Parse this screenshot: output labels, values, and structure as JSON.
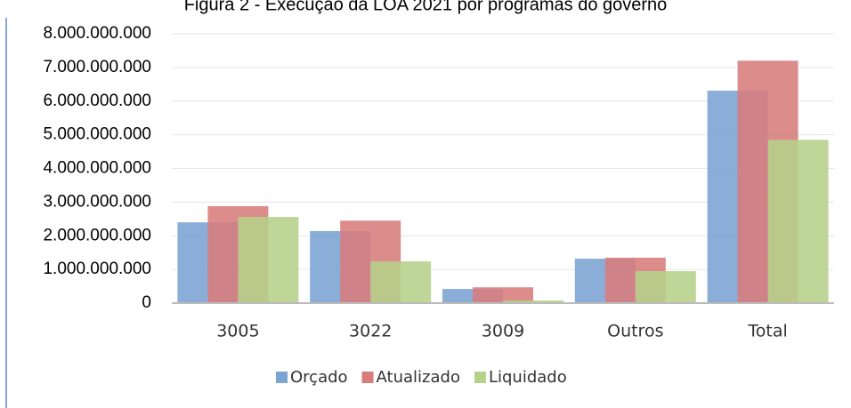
{
  "chart_data": {
    "type": "bar",
    "title": "Figura 2 - Execução da LOA 2021 por programas do governo",
    "categories": [
      "3005",
      "3022",
      "3009",
      "Outros",
      "Total"
    ],
    "series": [
      {
        "name": "Orçado",
        "color": "#7ba3d4",
        "values": [
          2400000000,
          2140000000,
          420000000,
          1320000000,
          6310000000
        ]
      },
      {
        "name": "Atualizado",
        "color": "#d87c7c",
        "values": [
          2880000000,
          2450000000,
          470000000,
          1350000000,
          7200000000
        ]
      },
      {
        "name": "Liquidado",
        "color": "#b5d28a",
        "values": [
          2560000000,
          1240000000,
          80000000,
          950000000,
          4850000000
        ]
      }
    ],
    "ylim": [
      0,
      8000000000
    ],
    "yticks": [
      0,
      {
        "value": 1000000000,
        "label": "1.000.000.000"
      },
      {
        "value": 2000000000,
        "label": "2.000.000.000"
      },
      {
        "value": 3000000000,
        "label": "3.000.000.000"
      },
      {
        "value": 4000000000,
        "label": "4.000.000.000"
      },
      {
        "value": 5000000000,
        "label": "5.000.000.000"
      },
      {
        "value": 6000000000,
        "label": "6.000.000.000"
      },
      {
        "value": 7000000000,
        "label": "7.000.000.000"
      },
      {
        "value": 8000000000,
        "label": "8.000.000.000"
      }
    ],
    "grid": true,
    "legend": "bottom"
  }
}
